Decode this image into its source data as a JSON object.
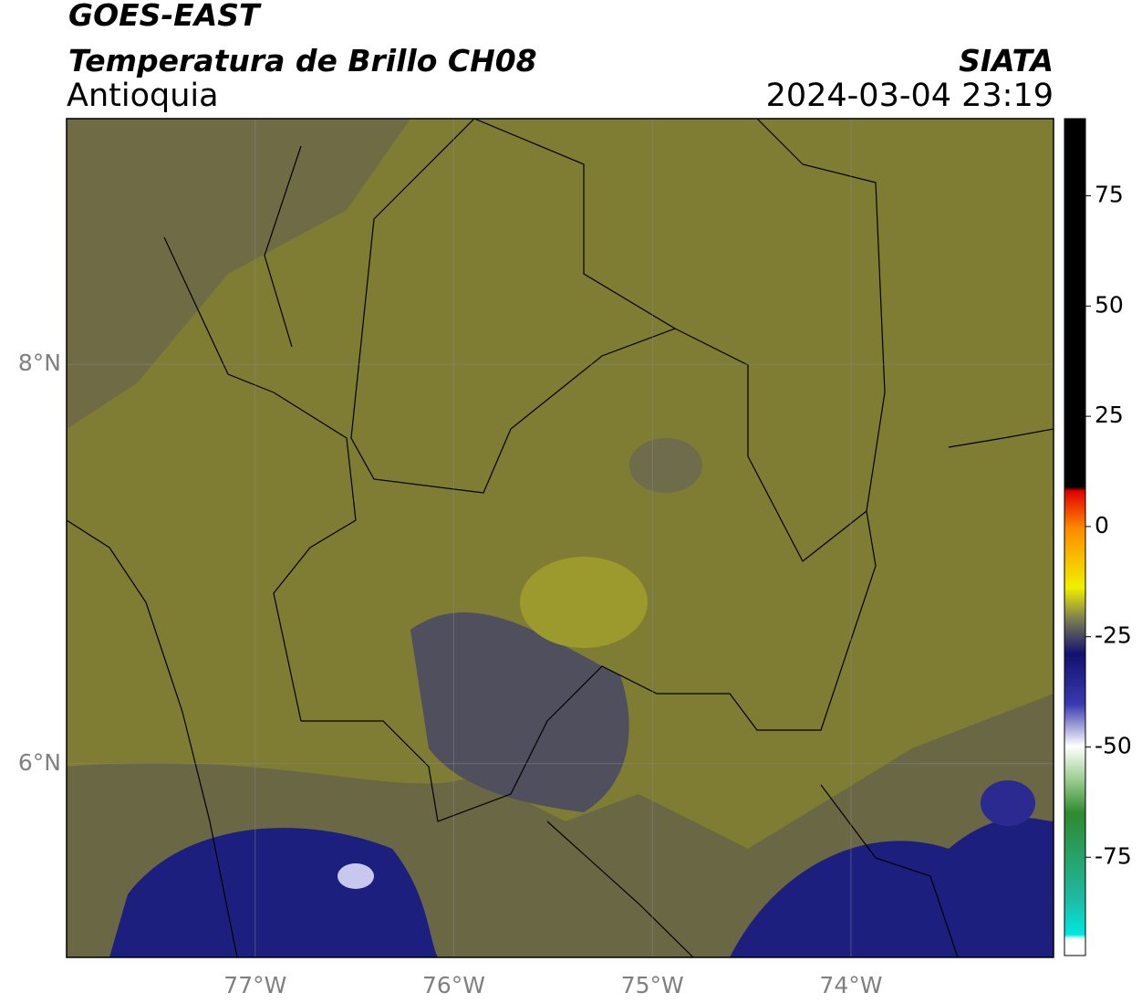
{
  "header": {
    "title": "GOES-EAST",
    "subtitle": "Temperatura de Brillo CH08",
    "region": "Antioquia",
    "source": "SIATA",
    "datetime": "2024-03-04 23:19"
  },
  "map": {
    "xlim": [
      -77.95,
      -72.98
    ],
    "ylim": [
      5.03,
      9.23
    ],
    "xticks": [
      {
        "value": -77,
        "label": "77°W"
      },
      {
        "value": -76,
        "label": "76°W"
      },
      {
        "value": -75,
        "label": "75°W"
      },
      {
        "value": -74,
        "label": "74°W"
      }
    ],
    "yticks": [
      {
        "value": 8,
        "label": "8°N"
      },
      {
        "value": 6,
        "label": "6°N"
      }
    ]
  },
  "colorbar": {
    "lim": [
      -97.3,
      92.5
    ],
    "ticks": [
      75,
      50,
      25,
      0,
      -25,
      -50,
      -75
    ]
  }
}
